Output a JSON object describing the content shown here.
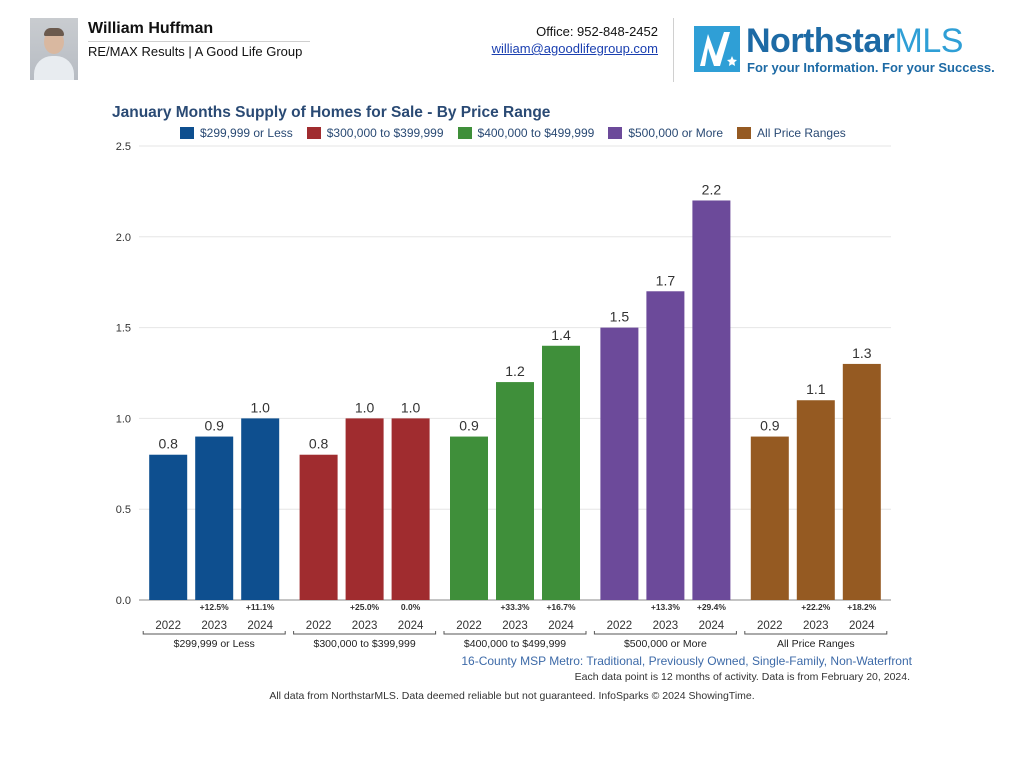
{
  "header": {
    "agent_name": "William Huffman",
    "agent_company": "RE/MAX Results | A Good Life Group",
    "office": "Office: 952-848-2452",
    "email": "william@agoodlifegroup.com",
    "logo": {
      "name": "Northstar",
      "suffix": "MLS",
      "tagline": "For your Information. For your Success."
    }
  },
  "colors": {
    "title": "#2a4a74",
    "grid": "#e6e6e6",
    "axis_text": "#333333"
  },
  "chart_data": {
    "type": "bar",
    "title": "January Months Supply of Homes for Sale - By Price Range",
    "xlabel": "",
    "ylabel": "",
    "ylim": [
      0,
      2.5
    ],
    "yticks": [
      "0.0",
      "0.5",
      "1.0",
      "1.5",
      "2.0",
      "2.5"
    ],
    "grid": true,
    "legend_position": "top",
    "years": [
      "2022",
      "2023",
      "2024"
    ],
    "series": [
      {
        "name": "$299,999 or Less",
        "color": "#0e4f8f",
        "values": [
          0.8,
          0.9,
          1.0
        ],
        "value_labels": [
          "0.8",
          "0.9",
          "1.0"
        ],
        "changes": [
          "",
          "+12.5%",
          "+11.1%"
        ]
      },
      {
        "name": "$300,000 to $399,999",
        "color": "#a02c2f",
        "values": [
          0.8,
          1.0,
          1.0
        ],
        "value_labels": [
          "0.8",
          "1.0",
          "1.0"
        ],
        "changes": [
          "",
          "+25.0%",
          "0.0%"
        ]
      },
      {
        "name": "$400,000 to $499,999",
        "color": "#3f8f3a",
        "values": [
          0.9,
          1.2,
          1.4
        ],
        "value_labels": [
          "0.9",
          "1.2",
          "1.4"
        ],
        "changes": [
          "",
          "+33.3%",
          "+16.7%"
        ]
      },
      {
        "name": "$500,000 or More",
        "color": "#6c4a9a",
        "values": [
          1.5,
          1.7,
          2.2
        ],
        "value_labels": [
          "1.5",
          "1.7",
          "2.2"
        ],
        "changes": [
          "",
          "+13.3%",
          "+29.4%"
        ]
      },
      {
        "name": "All Price Ranges",
        "color": "#955a22",
        "values": [
          0.9,
          1.1,
          1.3
        ],
        "value_labels": [
          "0.9",
          "1.1",
          "1.3"
        ],
        "changes": [
          "",
          "+22.2%",
          "+18.2%"
        ]
      }
    ]
  },
  "footer": {
    "region": "16-County MSP Metro: Traditional, Previously Owned, Single-Family, Non-Waterfront",
    "note": "Each data point is 12 months of activity. Data is from February 20, 2024.",
    "source": "All data from NorthstarMLS. Data deemed reliable but not guaranteed. InfoSparks © 2024 ShowingTime."
  }
}
